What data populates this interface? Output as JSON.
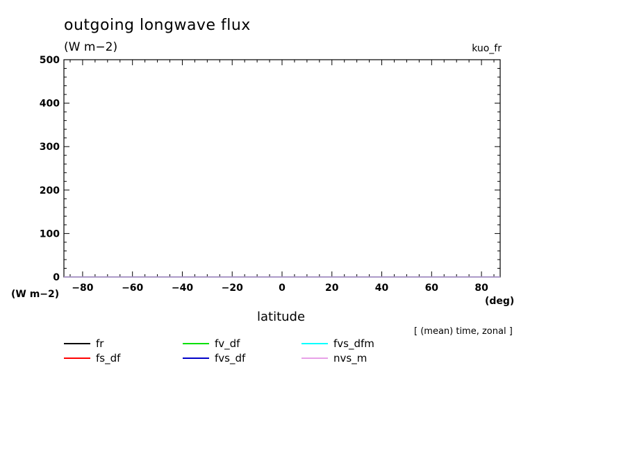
{
  "chart_data": {
    "type": "line",
    "title": "outgoing longwave flux",
    "subtitle": "(W m−2)",
    "run_label": "kuo_fr",
    "xlabel": "latitude",
    "xunit": "(deg)",
    "yunit": "(W m−2)",
    "note": "[ (mean) time, zonal ]",
    "xlim": [
      -87.5,
      87.5
    ],
    "ylim": [
      0,
      500
    ],
    "xticks": [
      -80,
      -60,
      -40,
      -20,
      0,
      20,
      40,
      60,
      80
    ],
    "xtick_labels": [
      "−80",
      "−60",
      "−40",
      "−20",
      "0",
      "20",
      "40",
      "60",
      "80"
    ],
    "yticks": [
      0,
      100,
      200,
      300,
      400,
      500
    ],
    "ytick_labels": [
      "0",
      "100",
      "200",
      "300",
      "400",
      "500"
    ],
    "x": [
      -87.5,
      87.5
    ],
    "series": [
      {
        "name": "fr",
        "color": "#000000",
        "values": [
          0,
          0
        ]
      },
      {
        "name": "fs_df",
        "color": "#ff0000",
        "values": [
          0,
          0
        ]
      },
      {
        "name": "fv_df",
        "color": "#00e000",
        "values": [
          0,
          0
        ]
      },
      {
        "name": "fvs_df",
        "color": "#0000c8",
        "values": [
          0,
          0
        ]
      },
      {
        "name": "fvs_dfm",
        "color": "#00ffff",
        "values": [
          0,
          0
        ]
      },
      {
        "name": "nvs_m",
        "color": "#e8a0e8",
        "values": [
          0,
          0
        ]
      }
    ],
    "legend_placement": "bottom-left",
    "grid": false
  }
}
